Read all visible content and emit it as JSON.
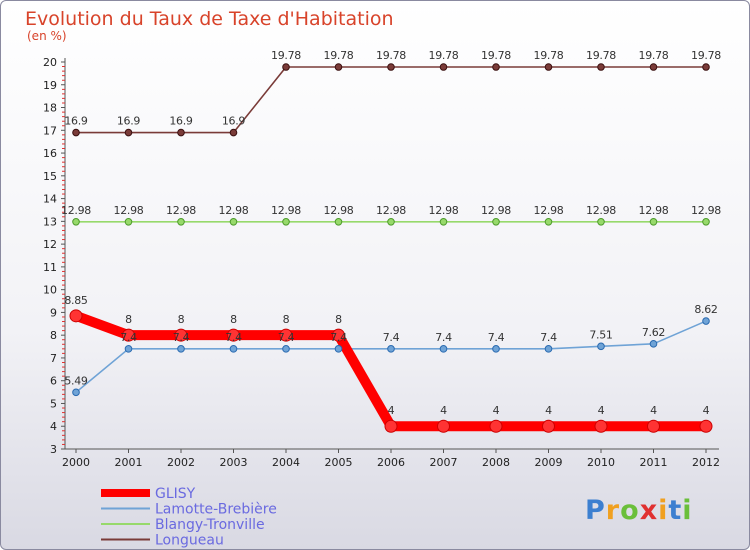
{
  "chart_data": {
    "type": "line",
    "title": "Evolution du Taux de Taxe d'Habitation",
    "subtitle": "(en %)",
    "xlabel": "",
    "ylabel": "",
    "categories": [
      "2000",
      "2001",
      "2002",
      "2003",
      "2004",
      "2005",
      "2006",
      "2007",
      "2008",
      "2009",
      "2010",
      "2011",
      "2012"
    ],
    "ylim": [
      3,
      20
    ],
    "yticks": [
      3,
      4,
      5,
      6,
      7,
      8,
      9,
      10,
      11,
      12,
      13,
      14,
      15,
      16,
      17,
      18,
      19,
      20
    ],
    "grid": false,
    "legend_position": "bottom-left",
    "series": [
      {
        "name": "GLISY",
        "color": "#ff0000",
        "thick": true,
        "values": [
          8.85,
          8,
          8,
          8,
          8,
          8,
          4,
          4,
          4,
          4,
          4,
          4,
          4
        ],
        "labels": [
          "8.85",
          "8",
          "8",
          "8",
          "8",
          "8",
          "4",
          "4",
          "4",
          "4",
          "4",
          "4",
          "4"
        ]
      },
      {
        "name": "Lamotte-Brebière",
        "color": "#6fa3d6",
        "thick": false,
        "values": [
          5.49,
          7.4,
          7.4,
          7.4,
          7.4,
          7.4,
          7.4,
          7.4,
          7.4,
          7.4,
          7.51,
          7.62,
          8.62
        ],
        "labels": [
          "5.49",
          "7.4",
          "7.4",
          "7.4",
          "7.4",
          "7.4",
          "7.4",
          "7.4",
          "7.4",
          "7.4",
          "7.51",
          "7.62",
          "8.62"
        ]
      },
      {
        "name": "Blangy-Tronville",
        "color": "#97d96b",
        "thick": false,
        "values": [
          12.98,
          12.98,
          12.98,
          12.98,
          12.98,
          12.98,
          12.98,
          12.98,
          12.98,
          12.98,
          12.98,
          12.98,
          12.98
        ],
        "labels": [
          "12.98",
          "12.98",
          "12.98",
          "12.98",
          "12.98",
          "12.98",
          "12.98",
          "12.98",
          "12.98",
          "12.98",
          "12.98",
          "12.98",
          "12.98"
        ]
      },
      {
        "name": "Longueau",
        "color": "#7a3b38",
        "thick": false,
        "values": [
          16.9,
          16.9,
          16.9,
          16.9,
          19.78,
          19.78,
          19.78,
          19.78,
          19.78,
          19.78,
          19.78,
          19.78,
          19.78
        ],
        "labels": [
          "16.9",
          "16.9",
          "16.9",
          "16.9",
          "19.78",
          "19.78",
          "19.78",
          "19.78",
          "19.78",
          "19.78",
          "19.78",
          "19.78",
          "19.78"
        ]
      }
    ]
  },
  "logo": {
    "text": "Proxiti"
  }
}
